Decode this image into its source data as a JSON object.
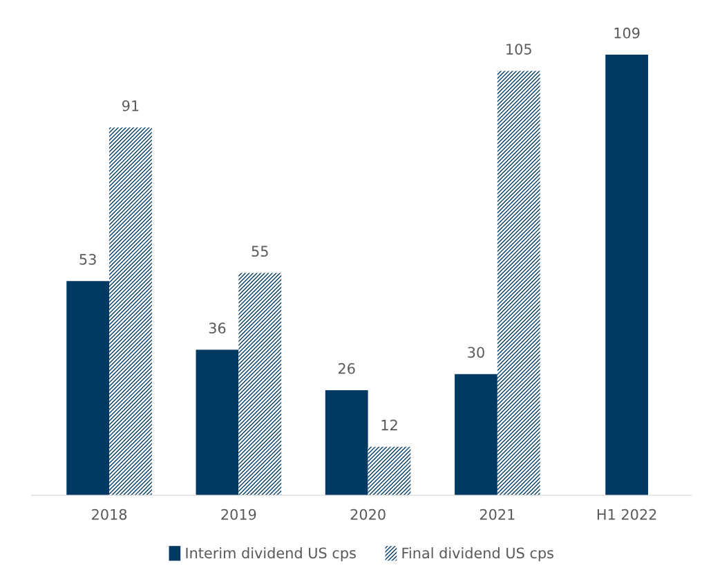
{
  "chart_data": {
    "type": "bar",
    "categories": [
      "2018",
      "2019",
      "2020",
      "2021",
      "H1 2022"
    ],
    "series": [
      {
        "name": "Interim dividend US cps",
        "color": "#003a63",
        "values": [
          53,
          36,
          26,
          30,
          109
        ]
      },
      {
        "name": "Final dividend US cps",
        "color": "#003a63",
        "values": [
          91,
          55,
          12,
          105,
          null
        ]
      }
    ],
    "data_labels": true,
    "legend": "bottom",
    "grid": false
  }
}
